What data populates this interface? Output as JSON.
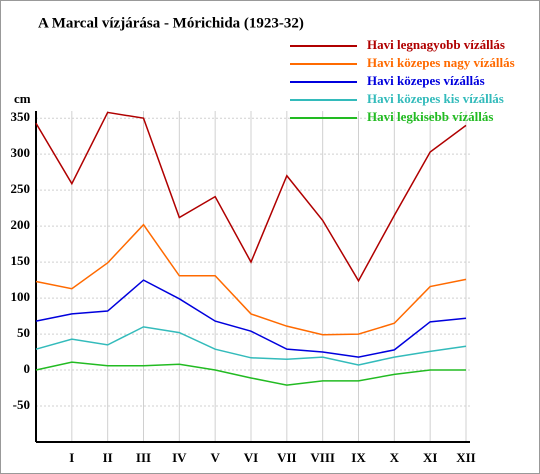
{
  "chart_data": {
    "type": "line",
    "title": "A Marcal vízjárása - Mórichida (1923-32)",
    "y_label": "cm",
    "categories": [
      null,
      "I",
      "II",
      "III",
      "IV",
      "V",
      "VI",
      "VII",
      "VIII",
      "IX",
      "X",
      "XI",
      "XII"
    ],
    "series": [
      {
        "name": "Havi legnagyobb vízállás",
        "color": "#b00000",
        "values": [
          343,
          259,
          358,
          350,
          212,
          241,
          150,
          270,
          208,
          124,
          215,
          303,
          340
        ]
      },
      {
        "name": "Havi közepes nagy vízállás",
        "color": "#ff6a00",
        "values": [
          123,
          113,
          149,
          202,
          131,
          131,
          78,
          61,
          49,
          50,
          65,
          116,
          126
        ]
      },
      {
        "name": "Havi közepes vízállás",
        "color": "#0000dd",
        "values": [
          68,
          78,
          82,
          125,
          99,
          68,
          54,
          29,
          25,
          18,
          28,
          67,
          72
        ]
      },
      {
        "name": "Havi közepes kis vízállás",
        "color": "#33bbbb",
        "values": [
          29,
          43,
          35,
          60,
          52,
          29,
          17,
          15,
          18,
          7,
          18,
          26,
          33
        ]
      },
      {
        "name": "Havi legkisebb vízállás",
        "color": "#22bb22",
        "values": [
          0,
          11,
          6,
          6,
          8,
          0,
          -11,
          -21,
          -15,
          -15,
          -6,
          0,
          0
        ]
      }
    ],
    "ylim": [
      -100,
      360
    ],
    "yticks": [
      -50,
      0,
      50,
      100,
      150,
      200,
      250,
      300,
      350
    ],
    "grid": true
  }
}
